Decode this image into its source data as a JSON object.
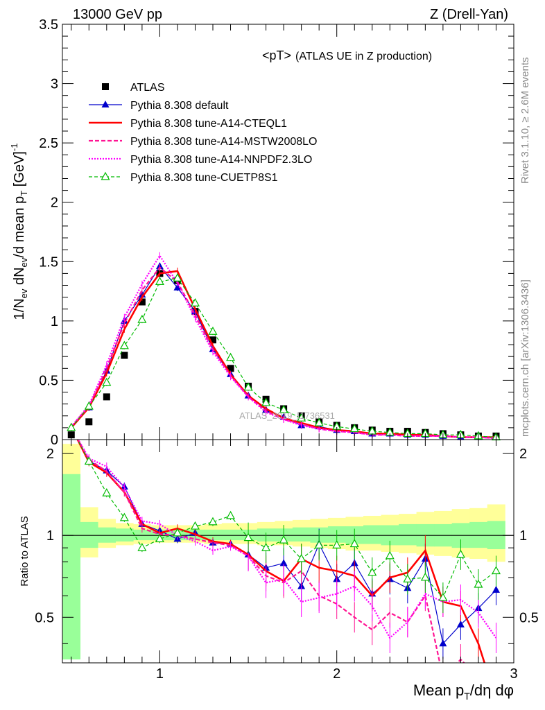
{
  "header": {
    "left": "13000 GeV pp",
    "right": "Z (Drell-Yan)"
  },
  "side_labels": {
    "rivet": "Rivet 3.1.10, ≥ 2.6M events",
    "mcplots": "mcplots.cern.ch [arXiv:1306.3436]"
  },
  "chart_data": [
    {
      "type": "line",
      "title": "<pT>",
      "subtitle": "(ATLAS UE in Z production)",
      "watermark": "ATLAS_2019_I1736531",
      "ylabel": "1/N_ev dN_ev/d mean p_T [GeV]^-1",
      "xlim": [
        0.45,
        3.0
      ],
      "ylim": [
        0,
        3.5
      ],
      "y_ticks": [
        "0",
        "0.5",
        "1",
        "1.5",
        "2",
        "2.5",
        "3",
        "3.5"
      ],
      "x": [
        0.5,
        0.6,
        0.7,
        0.8,
        0.9,
        1.0,
        1.1,
        1.2,
        1.3,
        1.4,
        1.5,
        1.6,
        1.7,
        1.8,
        1.9,
        2.0,
        2.1,
        2.2,
        2.3,
        2.4,
        2.5,
        2.6,
        2.7,
        2.8,
        2.9
      ],
      "legend": [
        "ATLAS",
        "Pythia 8.308 default",
        "Pythia 8.308 tune-A14-CTEQL1",
        "Pythia 8.308 tune-A14-MSTW2008LO",
        "Pythia 8.308 tune-A14-NNPDF2.3LO",
        "Pythia 8.308 tune-CUETP8S1"
      ],
      "series": [
        {
          "name": "ATLAS",
          "color": "#000000",
          "marker": "square",
          "values": [
            0.04,
            0.15,
            0.36,
            0.71,
            1.16,
            1.4,
            1.34,
            1.08,
            0.84,
            0.6,
            0.45,
            0.34,
            0.26,
            0.2,
            0.15,
            0.12,
            0.1,
            0.08,
            0.07,
            0.07,
            0.06,
            0.05,
            0.04,
            0.03,
            0.03
          ]
        },
        {
          "name": "Pythia 8.308 default",
          "color": "#0000cc",
          "marker": "triangle",
          "values": [
            0.1,
            0.27,
            0.58,
            1.0,
            1.22,
            1.46,
            1.28,
            1.08,
            0.76,
            0.55,
            0.37,
            0.25,
            0.19,
            0.12,
            0.11,
            0.08,
            0.07,
            0.05,
            0.05,
            0.04,
            0.04,
            0.03,
            0.02,
            0.02,
            0.02
          ]
        },
        {
          "name": "Pythia 8.308 tune-A14-CTEQL1",
          "color": "#ff0000",
          "values": [
            0.1,
            0.27,
            0.56,
            0.93,
            1.2,
            1.4,
            1.42,
            1.1,
            0.79,
            0.55,
            0.37,
            0.26,
            0.18,
            0.14,
            0.1,
            0.08,
            0.07,
            0.05,
            0.05,
            0.04,
            0.04,
            0.03,
            0.02,
            0.02,
            0.02
          ]
        },
        {
          "name": "Pythia 8.308 tune-A14-MSTW2008LO",
          "color": "#ff1493",
          "values": [
            0.11,
            0.28,
            0.6,
            0.98,
            1.26,
            1.45,
            1.33,
            1.05,
            0.76,
            0.54,
            0.36,
            0.24,
            0.17,
            0.13,
            0.09,
            0.07,
            0.06,
            0.04,
            0.04,
            0.03,
            0.03,
            0.03,
            0.02,
            0.02,
            0.01
          ]
        },
        {
          "name": "Pythia 8.308 tune-A14-NNPDF2.3LO",
          "color": "#ff00ff",
          "values": [
            0.11,
            0.29,
            0.63,
            1.03,
            1.31,
            1.55,
            1.32,
            1.02,
            0.74,
            0.53,
            0.36,
            0.23,
            0.17,
            0.12,
            0.09,
            0.07,
            0.06,
            0.04,
            0.04,
            0.03,
            0.03,
            0.03,
            0.02,
            0.02,
            0.01
          ]
        },
        {
          "name": "Pythia 8.308 tune-CUETP8S1",
          "color": "#00bb00",
          "marker": "open-triangle",
          "values": [
            0.1,
            0.28,
            0.48,
            0.79,
            1.01,
            1.33,
            1.36,
            1.15,
            0.91,
            0.69,
            0.44,
            0.31,
            0.25,
            0.18,
            0.14,
            0.11,
            0.09,
            0.07,
            0.06,
            0.05,
            0.05,
            0.04,
            0.04,
            0.03,
            0.02
          ]
        }
      ]
    },
    {
      "type": "line",
      "ylabel": "Ratio to ATLAS",
      "xlabel": "Mean p_T/dη dφ",
      "xlim": [
        0.45,
        3.0
      ],
      "ylim": [
        0.34,
        2.25
      ],
      "x_ticks": [
        "1",
        "2",
        "3"
      ],
      "y_ticks": [
        "0.5",
        "1",
        "2"
      ],
      "band_total": [
        [
          0.82,
          2.17
        ],
        [
          0.83,
          1.27
        ],
        [
          0.9,
          1.15
        ],
        [
          0.92,
          1.11
        ],
        [
          0.93,
          1.1
        ],
        [
          0.94,
          1.09
        ],
        [
          0.94,
          1.09
        ],
        [
          0.94,
          1.09
        ],
        [
          0.93,
          1.1
        ],
        [
          0.93,
          1.11
        ],
        [
          0.93,
          1.11
        ],
        [
          0.92,
          1.12
        ],
        [
          0.92,
          1.13
        ],
        [
          0.91,
          1.14
        ],
        [
          0.9,
          1.15
        ],
        [
          0.89,
          1.16
        ],
        [
          0.88,
          1.17
        ],
        [
          0.88,
          1.18
        ],
        [
          0.87,
          1.19
        ],
        [
          0.86,
          1.2
        ],
        [
          0.85,
          1.22
        ],
        [
          0.84,
          1.23
        ],
        [
          0.83,
          1.25
        ],
        [
          0.82,
          1.26
        ],
        [
          0.8,
          1.3
        ]
      ],
      "band_stat": [
        [
          0.35,
          1.68
        ],
        [
          0.9,
          1.12
        ],
        [
          0.94,
          1.07
        ],
        [
          0.95,
          1.06
        ],
        [
          0.96,
          1.05
        ],
        [
          0.96,
          1.05
        ],
        [
          0.96,
          1.05
        ],
        [
          0.96,
          1.05
        ],
        [
          0.96,
          1.05
        ],
        [
          0.96,
          1.05
        ],
        [
          0.96,
          1.05
        ],
        [
          0.95,
          1.06
        ],
        [
          0.95,
          1.06
        ],
        [
          0.95,
          1.07
        ],
        [
          0.94,
          1.07
        ],
        [
          0.94,
          1.08
        ],
        [
          0.93,
          1.08
        ],
        [
          0.93,
          1.09
        ],
        [
          0.92,
          1.09
        ],
        [
          0.92,
          1.1
        ],
        [
          0.91,
          1.1
        ],
        [
          0.91,
          1.1
        ],
        [
          0.9,
          1.11
        ],
        [
          0.9,
          1.12
        ],
        [
          0.89,
          1.13
        ]
      ],
      "series": [
        {
          "name": "Pythia 8.308 default",
          "color": "#0000cc",
          "marker": "triangle",
          "values": [
            2.5,
            1.88,
            1.73,
            1.51,
            1.1,
            1.04,
            0.97,
            1.02,
            0.94,
            0.93,
            0.85,
            0.76,
            0.79,
            0.65,
            0.93,
            0.69,
            0.79,
            0.61,
            0.69,
            0.64,
            0.82,
            0.4,
            0.47,
            0.54,
            0.63
          ]
        },
        {
          "name": "Pythia 8.308 tune-A14-CTEQL1",
          "color": "#ff0000",
          "values": [
            2.5,
            1.86,
            1.7,
            1.44,
            1.1,
            1.02,
            1.06,
            1.01,
            0.95,
            0.93,
            0.85,
            0.74,
            0.68,
            0.82,
            0.76,
            0.74,
            0.71,
            0.6,
            0.7,
            0.73,
            0.88,
            0.57,
            0.55,
            0.4,
            0.25
          ]
        },
        {
          "name": "Pythia 8.308 tune-A14-MSTW2008LO",
          "color": "#ff1493",
          "values": [
            2.5,
            1.9,
            1.72,
            1.44,
            1.06,
            1.01,
            1.0,
            0.97,
            0.94,
            0.92,
            0.84,
            0.71,
            0.67,
            0.74,
            0.6,
            0.56,
            0.5,
            0.45,
            0.52,
            0.48,
            0.6,
            0.3,
            0.35,
            0.3,
            0.3
          ]
        },
        {
          "name": "Pythia 8.308 tune-A14-NNPDF2.3LO",
          "color": "#ff00ff",
          "values": [
            2.5,
            1.92,
            1.79,
            1.5,
            1.13,
            1.1,
            1.0,
            0.95,
            0.88,
            0.91,
            0.84,
            0.67,
            0.69,
            0.57,
            0.59,
            0.61,
            0.65,
            0.55,
            0.42,
            0.48,
            0.61,
            0.57,
            0.58,
            0.52,
            0.42
          ]
        },
        {
          "name": "Pythia 8.308 tune-CUETP8S1",
          "color": "#00bb00",
          "marker": "open-triangle",
          "values": [
            2.5,
            1.87,
            1.43,
            1.16,
            0.9,
            0.97,
            1.02,
            1.08,
            1.12,
            1.18,
            0.98,
            0.9,
            0.96,
            0.82,
            0.92,
            0.92,
            0.93,
            0.73,
            0.84,
            0.69,
            0.7,
            0.59,
            0.85,
            0.66,
            0.74
          ]
        }
      ]
    }
  ]
}
